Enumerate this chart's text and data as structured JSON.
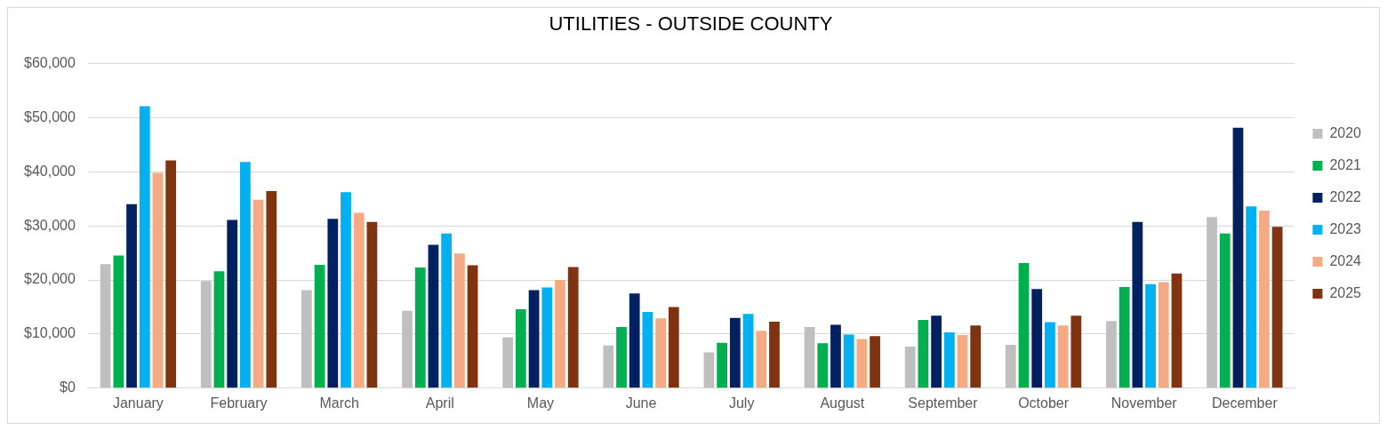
{
  "chart_data": {
    "type": "bar",
    "title": "UTILITIES - OUTSIDE COUNTY",
    "categories": [
      "January",
      "February",
      "March",
      "April",
      "May",
      "June",
      "July",
      "August",
      "September",
      "October",
      "November",
      "December"
    ],
    "series": [
      {
        "name": "2020",
        "color": "#bfbfbf",
        "values": [
          22900,
          19800,
          18100,
          14300,
          9400,
          7900,
          6600,
          11300,
          7700,
          8000,
          12400,
          31600
        ]
      },
      {
        "name": "2021",
        "color": "#00b050",
        "values": [
          24500,
          21600,
          22800,
          22300,
          14600,
          11300,
          8400,
          8300,
          12600,
          23100,
          18700,
          28600
        ]
      },
      {
        "name": "2022",
        "color": "#002060",
        "values": [
          34000,
          31100,
          31300,
          26500,
          18100,
          17500,
          13000,
          11700,
          13400,
          18300,
          30700,
          48100
        ]
      },
      {
        "name": "2023",
        "color": "#00b0f0",
        "values": [
          52100,
          41800,
          36200,
          28600,
          18600,
          14100,
          13700,
          9900,
          10300,
          12200,
          19200,
          33600
        ]
      },
      {
        "name": "2024",
        "color": "#f4aa82",
        "values": [
          39800,
          34800,
          32400,
          24900,
          20000,
          12900,
          10600,
          9100,
          9800,
          11600,
          19600,
          32800
        ]
      },
      {
        "name": "2025",
        "color": "#7f3310",
        "values": [
          42100,
          36400,
          30700,
          22700,
          22400,
          15000,
          12300,
          9600,
          11600,
          13400,
          21200,
          29800
        ]
      }
    ],
    "ylim": [
      0,
      60000
    ],
    "yticks": [
      {
        "value": 0,
        "label": "$0"
      },
      {
        "value": 10000,
        "label": "$10,000"
      },
      {
        "value": 20000,
        "label": "$20,000"
      },
      {
        "value": 30000,
        "label": "$30,000"
      },
      {
        "value": 40000,
        "label": "$40,000"
      },
      {
        "value": 50000,
        "label": "$50,000"
      },
      {
        "value": 60000,
        "label": "$60,000"
      }
    ],
    "grid": "y",
    "legend": "right"
  }
}
